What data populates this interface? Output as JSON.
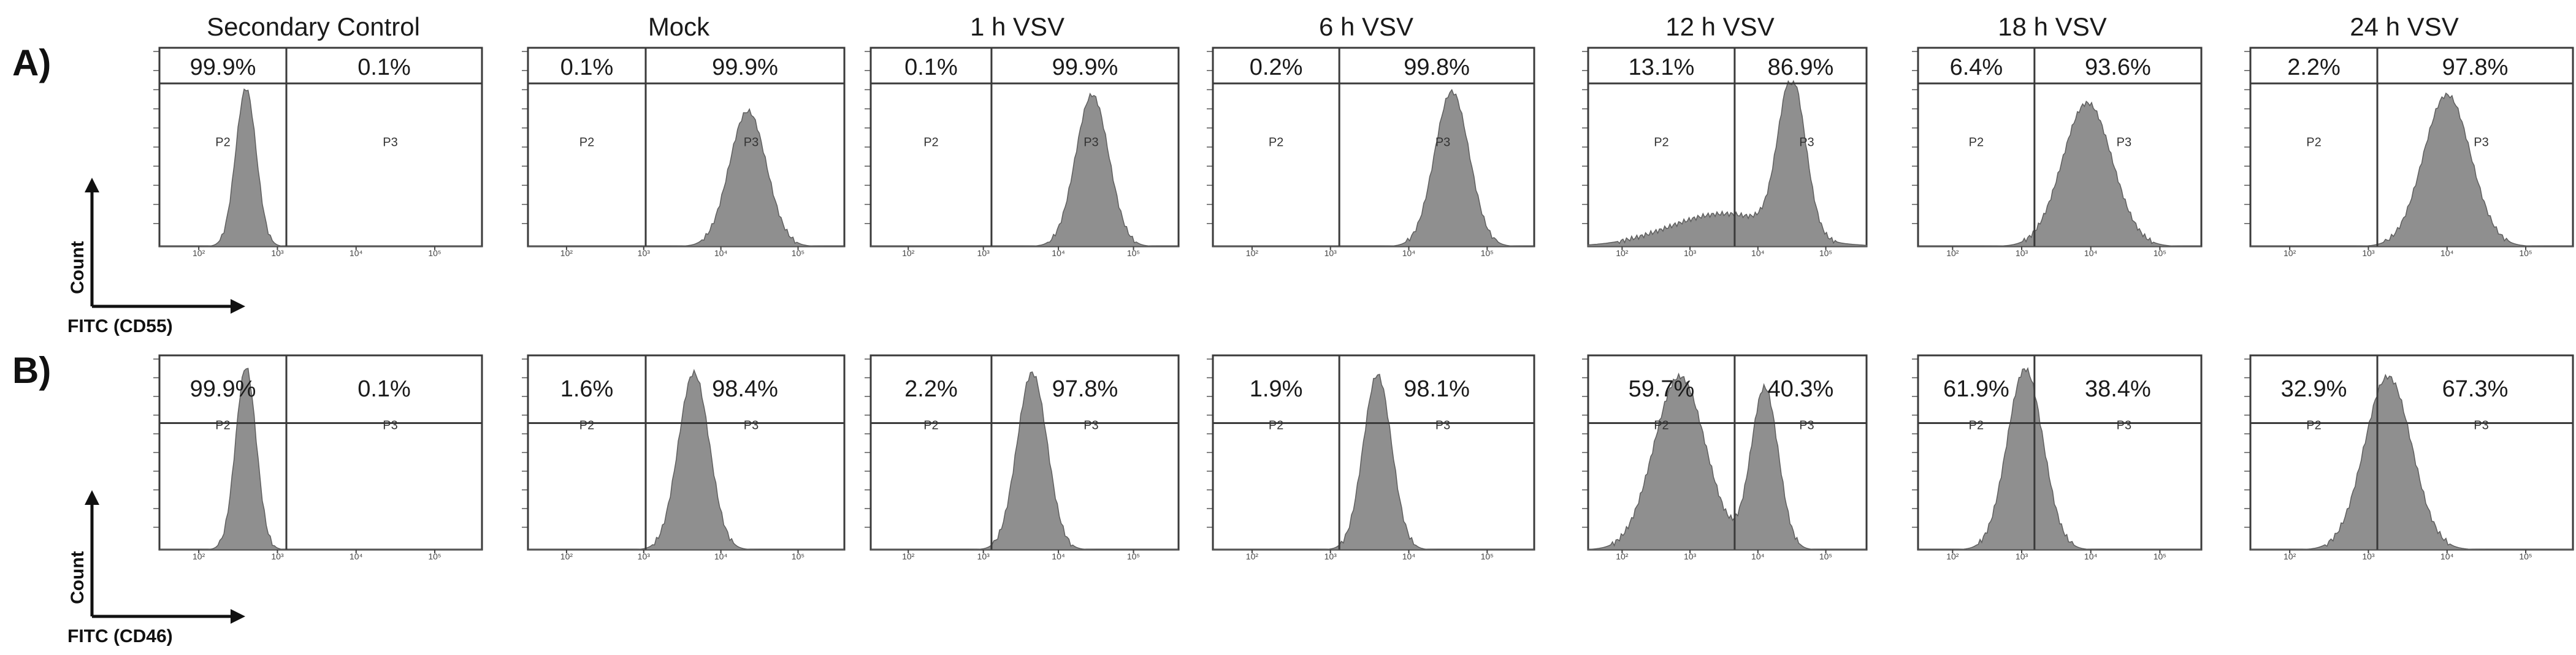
{
  "chart_data": {
    "type": "histogram-grid",
    "title": "",
    "columns": [
      "Secondary Control",
      "Mock",
      "1 h VSV",
      "6 h VSV",
      "12 h VSV",
      "18 h VSV",
      "24 h VSV"
    ],
    "gates": [
      "P2",
      "P3"
    ],
    "x_tick_labels": [
      "10²",
      "10³",
      "10⁴",
      "10⁵"
    ],
    "rows": [
      {
        "label": "A)",
        "marker": "FITC (CD55)",
        "ylabel": "Count",
        "panels": [
          {
            "P2_percent": "99.9%",
            "P3_percent": "0.1%",
            "peaks": [
              {
                "log_center": 2.6,
                "height": 0.97,
                "width": 0.13
              }
            ]
          },
          {
            "P2_percent": "0.1%",
            "P3_percent": "99.9%",
            "peaks": [
              {
                "log_center": 4.35,
                "height": 0.83,
                "width": 0.24
              }
            ]
          },
          {
            "P2_percent": "0.1%",
            "P3_percent": "99.9%",
            "peaks": [
              {
                "log_center": 4.45,
                "height": 0.93,
                "width": 0.22
              }
            ]
          },
          {
            "P2_percent": "0.2%",
            "P3_percent": "99.8%",
            "peaks": [
              {
                "log_center": 4.55,
                "height": 0.95,
                "width": 0.22
              }
            ]
          },
          {
            "P2_percent": "13.1%",
            "P3_percent": "86.9%",
            "peaks": [
              {
                "log_center": 4.5,
                "height": 0.96,
                "width": 0.2
              },
              {
                "log_center": 3.5,
                "height": 0.2,
                "width": 0.8
              }
            ]
          },
          {
            "P2_percent": "6.4%",
            "P3_percent": "93.6%",
            "peaks": [
              {
                "log_center": 3.95,
                "height": 0.88,
                "width": 0.36
              }
            ]
          },
          {
            "P2_percent": "2.2%",
            "P3_percent": "97.8%",
            "peaks": [
              {
                "log_center": 4.0,
                "height": 0.93,
                "width": 0.3
              }
            ]
          }
        ]
      },
      {
        "label": "B)",
        "marker": "FITC (CD46)",
        "ylabel": "Count",
        "panels": [
          {
            "P2_percent": "99.9%",
            "P3_percent": "0.1%",
            "peaks": [
              {
                "log_center": 2.6,
                "height": 0.97,
                "width": 0.13
              }
            ]
          },
          {
            "P2_percent": "1.6%",
            "P3_percent": "98.4%",
            "peaks": [
              {
                "log_center": 3.65,
                "height": 0.94,
                "width": 0.2
              }
            ]
          },
          {
            "P2_percent": "2.2%",
            "P3_percent": "97.8%",
            "peaks": [
              {
                "log_center": 3.65,
                "height": 0.94,
                "width": 0.2
              }
            ]
          },
          {
            "P2_percent": "1.9%",
            "P3_percent": "98.1%",
            "peaks": [
              {
                "log_center": 3.6,
                "height": 0.93,
                "width": 0.18
              }
            ]
          },
          {
            "P2_percent": "59.7%",
            "P3_percent": "40.3%",
            "peaks": [
              {
                "log_center": 2.85,
                "height": 0.92,
                "width": 0.38
              },
              {
                "log_center": 4.1,
                "height": 0.86,
                "width": 0.2
              }
            ]
          },
          {
            "P2_percent": "61.9%",
            "P3_percent": "38.4%",
            "peaks": [
              {
                "log_center": 3.05,
                "height": 0.96,
                "width": 0.26
              }
            ]
          },
          {
            "P2_percent": "32.9%",
            "P3_percent": "67.3%",
            "peaks": [
              {
                "log_center": 3.25,
                "height": 0.92,
                "width": 0.3
              }
            ]
          }
        ]
      }
    ],
    "x_log_range": [
      1.5,
      5.6
    ]
  }
}
